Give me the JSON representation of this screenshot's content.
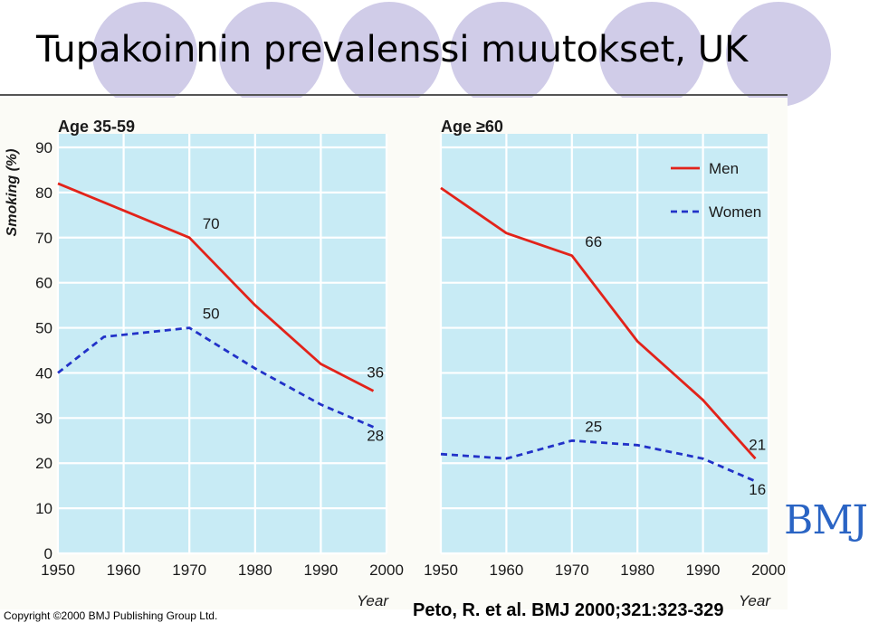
{
  "slide": {
    "title": "Tupakoinnin prevalenssi muutokset, UK",
    "copyright": "Copyright ©2000 BMJ Publishing Group Ltd.",
    "citation": "Peto, R. et al. BMJ 2000;321:323-329",
    "logo_text": "BMJ"
  },
  "colors": {
    "background_panel": "#c8ebf5",
    "men": "#e2231a",
    "women": "#2232c8",
    "logo": "#2a64c4",
    "decor_circles": "#d0cce8"
  },
  "chart_data": [
    {
      "type": "line",
      "title": "Age 35-59",
      "ylabel": "Smoking (%)",
      "xlabel": "Year",
      "ylim": [
        0,
        90
      ],
      "xlim": [
        1950,
        2000
      ],
      "yticks": [
        "0",
        "10",
        "20",
        "30",
        "40",
        "50",
        "60",
        "70",
        "80",
        "90"
      ],
      "xticks": [
        "1950",
        "1960",
        "1970",
        "1980",
        "1990",
        "2000"
      ],
      "grid": true,
      "series": [
        {
          "name": "Men",
          "style": "solid",
          "x": [
            1950,
            1960,
            1970,
            1980,
            1990,
            1998
          ],
          "y": [
            82,
            76,
            70,
            55,
            42,
            36
          ]
        },
        {
          "name": "Women",
          "style": "dashed",
          "x": [
            1950,
            1957,
            1970,
            1980,
            1990,
            1998
          ],
          "y": [
            40,
            48,
            50,
            41,
            33,
            28
          ]
        }
      ],
      "annotations": [
        {
          "text": "70",
          "x": 1972,
          "y": 72
        },
        {
          "text": "50",
          "x": 1972,
          "y": 52
        },
        {
          "text": "36",
          "x": 1997,
          "y": 39
        },
        {
          "text": "28",
          "x": 1997,
          "y": 25
        }
      ]
    },
    {
      "type": "line",
      "title": "Age ≥60",
      "ylabel": "",
      "xlabel": "Year",
      "ylim": [
        0,
        90
      ],
      "xlim": [
        1950,
        2000
      ],
      "xticks": [
        "1950",
        "1960",
        "1970",
        "1980",
        "1990",
        "2000"
      ],
      "grid": true,
      "legend": {
        "position": "top-right",
        "entries": [
          "Men",
          "Women"
        ]
      },
      "series": [
        {
          "name": "Men",
          "style": "solid",
          "x": [
            1950,
            1960,
            1970,
            1980,
            1990,
            1998
          ],
          "y": [
            81,
            71,
            66,
            47,
            34,
            21
          ]
        },
        {
          "name": "Women",
          "style": "dashed",
          "x": [
            1950,
            1960,
            1970,
            1980,
            1990,
            1998
          ],
          "y": [
            22,
            21,
            25,
            24,
            21,
            16
          ]
        }
      ],
      "annotations": [
        {
          "text": "66",
          "x": 1972,
          "y": 68
        },
        {
          "text": "25",
          "x": 1972,
          "y": 27
        },
        {
          "text": "21",
          "x": 1997,
          "y": 23
        },
        {
          "text": "16",
          "x": 1997,
          "y": 13
        }
      ]
    }
  ]
}
